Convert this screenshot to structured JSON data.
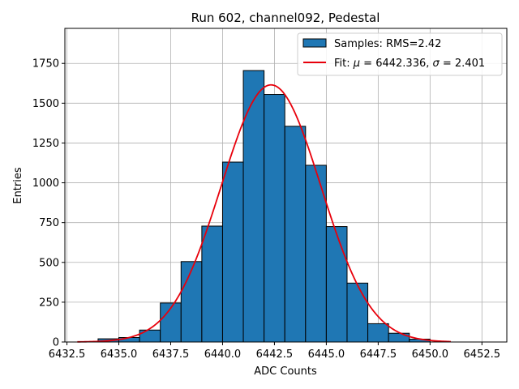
{
  "chart_data": {
    "type": "bar",
    "title": "Run 602, channel092, Pedestal",
    "xlabel": "ADC Counts",
    "ylabel": "Entries",
    "xlim": [
      6432.4,
      6453.7
    ],
    "ylim": [
      0,
      1970
    ],
    "grid": true,
    "legend_position": "top-right",
    "bar_color": "#1f77b4",
    "bar_edge_color": "#000000",
    "fit_color": "#e8000b",
    "bins": [
      {
        "x0": 6434,
        "x1": 6435,
        "value": 20
      },
      {
        "x0": 6435,
        "x1": 6436,
        "value": 28
      },
      {
        "x0": 6436,
        "x1": 6437,
        "value": 75
      },
      {
        "x0": 6437,
        "x1": 6438,
        "value": 245
      },
      {
        "x0": 6438,
        "x1": 6439,
        "value": 505
      },
      {
        "x0": 6439,
        "x1": 6440,
        "value": 728
      },
      {
        "x0": 6440,
        "x1": 6441,
        "value": 1130
      },
      {
        "x0": 6441,
        "x1": 6442,
        "value": 1705
      },
      {
        "x0": 6442,
        "x1": 6443,
        "value": 1555
      },
      {
        "x0": 6443,
        "x1": 6444,
        "value": 1355
      },
      {
        "x0": 6444,
        "x1": 6445,
        "value": 1110
      },
      {
        "x0": 6445,
        "x1": 6446,
        "value": 725
      },
      {
        "x0": 6446,
        "x1": 6447,
        "value": 370
      },
      {
        "x0": 6447,
        "x1": 6448,
        "value": 115
      },
      {
        "x0": 6448,
        "x1": 6449,
        "value": 55
      },
      {
        "x0": 6449,
        "x1": 6450,
        "value": 18
      }
    ],
    "fit": {
      "mu": 6442.336,
      "sigma": 2.401,
      "amplitude": 1615,
      "x_range": [
        6433,
        6451
      ]
    },
    "xticks": [
      {
        "value": 6432.5,
        "label": "6432.5"
      },
      {
        "value": 6435.0,
        "label": "6435.0"
      },
      {
        "value": 6437.5,
        "label": "6437.5"
      },
      {
        "value": 6440.0,
        "label": "6440.0"
      },
      {
        "value": 6442.5,
        "label": "6442.5"
      },
      {
        "value": 6445.0,
        "label": "6445.0"
      },
      {
        "value": 6447.5,
        "label": "6447.5"
      },
      {
        "value": 6450.0,
        "label": "6450.0"
      },
      {
        "value": 6452.5,
        "label": "6452.5"
      }
    ],
    "yticks": [
      {
        "value": 0,
        "label": "0"
      },
      {
        "value": 250,
        "label": "250"
      },
      {
        "value": 500,
        "label": "500"
      },
      {
        "value": 750,
        "label": "750"
      },
      {
        "value": 1000,
        "label": "1000"
      },
      {
        "value": 1250,
        "label": "1250"
      },
      {
        "value": 1500,
        "label": "1500"
      },
      {
        "value": 1750,
        "label": "1750"
      }
    ],
    "legend": {
      "samples_label": "Samples: RMS=2.42",
      "fit_label_prefix": "Fit: ",
      "mu_symbol": "μ",
      "fit_label_mid": " = 6442.336, ",
      "sigma_symbol": "σ",
      "fit_label_suffix": " = 2.401"
    }
  }
}
